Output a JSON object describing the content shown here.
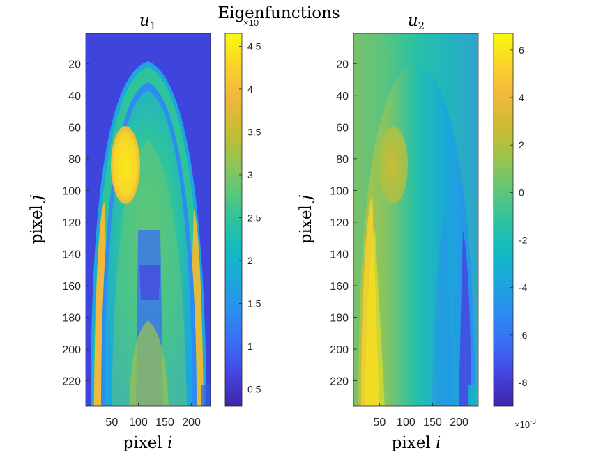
{
  "figure": {
    "suptitle": "Eigenfunctions"
  },
  "chart_data": [
    {
      "type": "heatmap",
      "title": "u",
      "title_subscript": "1",
      "xlabel": "pixel",
      "xlabel_var": "i",
      "ylabel": "pixel",
      "ylabel_var": "j",
      "xlim": [
        1,
        236
      ],
      "ylim": [
        1,
        236
      ],
      "xticks": [
        50,
        100,
        150,
        200
      ],
      "yticks": [
        20,
        40,
        60,
        80,
        100,
        120,
        140,
        160,
        180,
        200,
        220
      ],
      "colorbar": {
        "min": 0.3,
        "max": 4.65,
        "ticks": [
          0.5,
          1,
          1.5,
          2,
          2.5,
          3,
          3.5,
          4,
          4.5
        ],
        "exponent_label": "×10"
      },
      "colormap": "parula",
      "description": "MRI-like head slice, brighter tumor region around i≈70, j≈90"
    },
    {
      "type": "heatmap",
      "title": "u",
      "title_subscript": "2",
      "xlabel": "pixel",
      "xlabel_var": "i",
      "ylabel": "pixel",
      "ylabel_var": "j",
      "xlim": [
        1,
        236
      ],
      "ylim": [
        1,
        236
      ],
      "xticks": [
        50,
        100,
        150,
        200
      ],
      "yticks": [
        20,
        40,
        60,
        80,
        100,
        120,
        140,
        160,
        180,
        200,
        220
      ],
      "colorbar": {
        "min": -9.0,
        "max": 6.7,
        "ticks": [
          6,
          4,
          2,
          0,
          -2,
          -4,
          -6,
          -8
        ],
        "exponent_label": "×10",
        "exponent": "-3"
      },
      "colormap": "parula",
      "description": "Gradient from left (high) to right (low) over head slice"
    }
  ],
  "colors": {
    "parula": [
      "#3e26a8",
      "#4643df",
      "#3a6cf7",
      "#2d8cf0",
      "#1ca6de",
      "#13b9c2",
      "#2ec39d",
      "#63c676",
      "#9bc34b",
      "#cdbc32",
      "#f2b73e",
      "#fbd22a",
      "#f9fb0e"
    ]
  }
}
